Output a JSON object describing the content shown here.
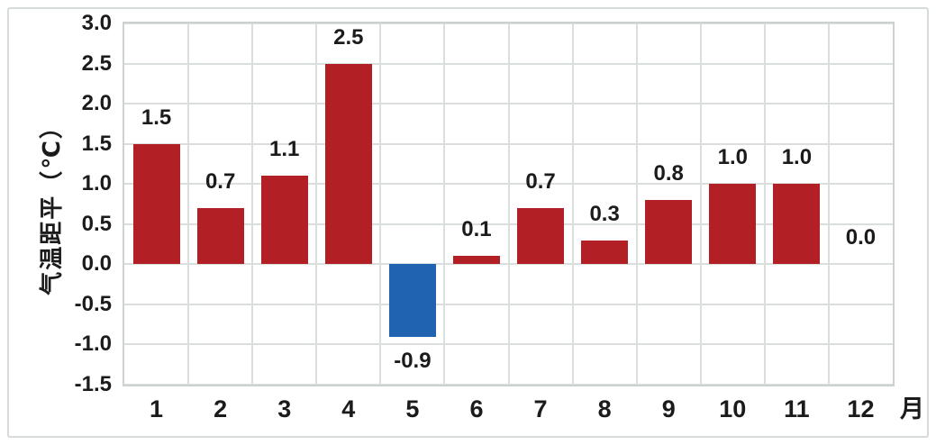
{
  "window": {
    "background_color": "#ffffff",
    "frame_border_color": "#d6dbdb"
  },
  "chart_data": {
    "type": "bar",
    "title": "",
    "categories": [
      "1",
      "2",
      "3",
      "4",
      "5",
      "6",
      "7",
      "8",
      "9",
      "10",
      "11",
      "12"
    ],
    "values": [
      1.5,
      0.7,
      1.1,
      2.5,
      -0.9,
      0.1,
      0.7,
      0.3,
      0.8,
      1.0,
      1.0,
      0.0
    ],
    "data_labels": [
      "1.5",
      "0.7",
      "1.1",
      "2.5",
      "-0.9",
      "0.1",
      "0.7",
      "0.3",
      "0.8",
      "1.0",
      "1.0",
      "0.0"
    ],
    "xlabel": "月",
    "ylabel": "气温距平（℃）",
    "ylim": [
      -1.5,
      3.0
    ],
    "ytick_step": 0.5,
    "ytick_labels": [
      "3.0",
      "2.5",
      "2.0",
      "1.5",
      "1.0",
      "0.5",
      "0.0",
      "-0.5",
      "-1.0",
      "-1.5"
    ],
    "grid": true,
    "legend": "none",
    "colors": {
      "positive_bar": "#b22026",
      "negative_bar": "#2063b1",
      "gridline": "#dadedd",
      "plot_border": "#ccd2d2",
      "text": "#1b1b1b"
    },
    "notes": "zero-value month 12 has label but no visible bar"
  }
}
